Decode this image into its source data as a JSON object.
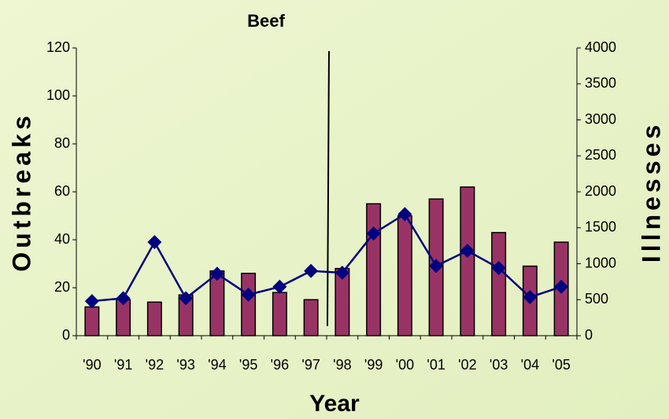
{
  "chart_data": {
    "type": "bar_line",
    "title": "Beef",
    "x_label": "Year",
    "y_label": "Outbreaks",
    "y2_label": "Illnesses",
    "categories": [
      "'90",
      "'91",
      "'92",
      "'93",
      "'94",
      "'95",
      "'96",
      "'97",
      "'98",
      "'99",
      "'00",
      "'01",
      "'02",
      "'03",
      "'04",
      "'05"
    ],
    "series": [
      {
        "name": "Outbreaks",
        "type": "bar",
        "color": "#993366",
        "values": [
          12,
          15,
          14,
          17,
          27,
          26,
          18,
          15,
          28,
          55,
          50,
          57,
          62,
          43,
          29,
          39
        ]
      },
      {
        "name": "Illnesses",
        "type": "line",
        "axis": "y2",
        "color": "#000080",
        "values": [
          480,
          520,
          1300,
          520,
          860,
          570,
          680,
          900,
          875,
          1420,
          1690,
          970,
          1180,
          940,
          535,
          680
        ]
      }
    ],
    "ylim": [
      0,
      120
    ],
    "yticks": [
      0,
      20,
      40,
      60,
      80,
      100,
      120
    ],
    "y2lim": [
      0,
      4000
    ],
    "y2ticks": [
      0,
      500,
      1000,
      1500,
      2000,
      2500,
      3000,
      3500,
      4000
    ]
  }
}
